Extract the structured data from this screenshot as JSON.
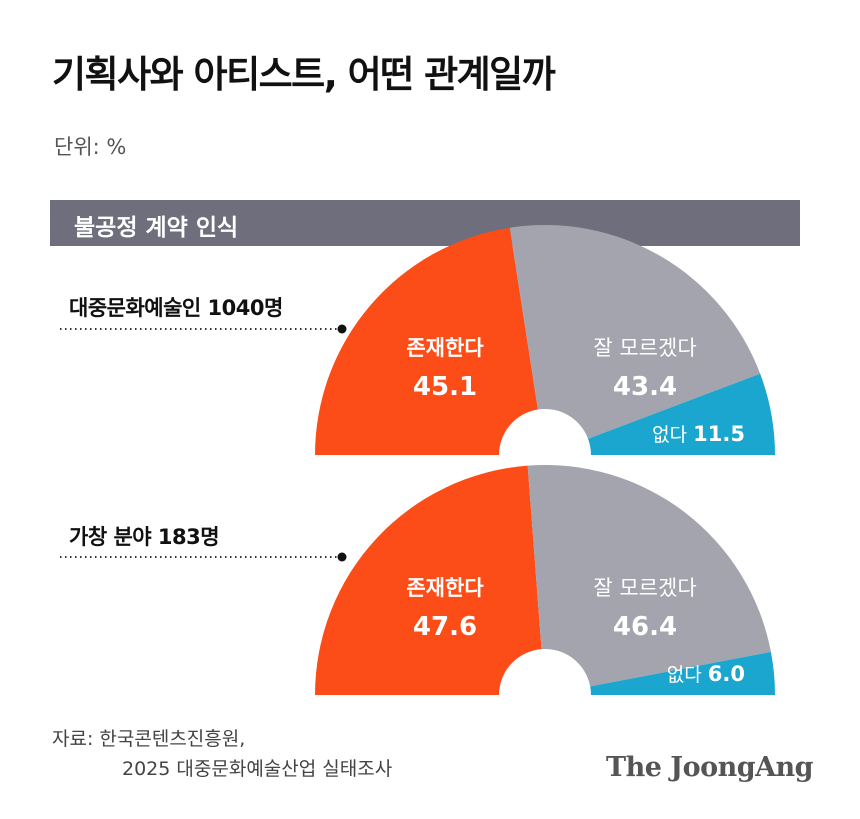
{
  "title": "기획사와 아티스트, 어떤 관계일까",
  "unit": "단위: %",
  "section_label": "불공정 계약 인식",
  "source_line1": "자료: 한국콘텐츠진흥원,",
  "source_line2": "2025 대중문화예술산업 실태조사",
  "logo": "The JoongAng",
  "colors": {
    "exists": "#fc4c17",
    "unknown": "#a4a4ae",
    "none": "#1aa6cf",
    "band": "#6e6e7c"
  },
  "chart_data": [
    {
      "type": "pie",
      "title": "대중문화예술인 1040명",
      "categories": [
        "존재한다",
        "잘 모르겠다",
        "없다"
      ],
      "values": [
        45.1,
        43.4,
        11.5
      ]
    },
    {
      "type": "pie",
      "title": "가창 분야 183명",
      "categories": [
        "존재한다",
        "잘 모르겠다",
        "없다"
      ],
      "values": [
        47.6,
        46.4,
        6.0
      ]
    }
  ]
}
